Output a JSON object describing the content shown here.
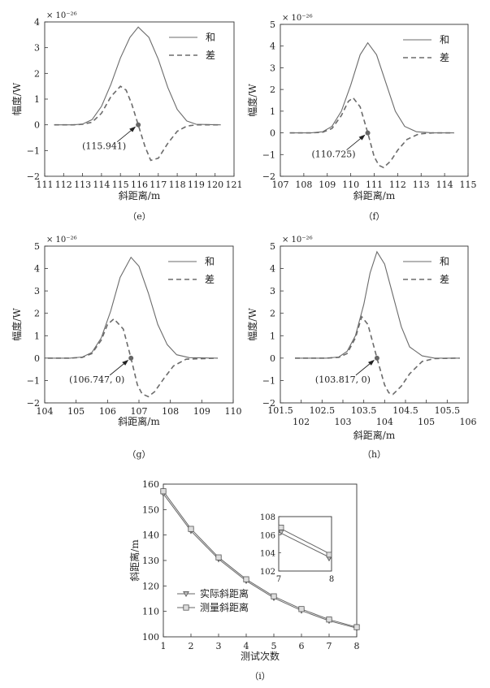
{
  "chart_data": [
    {
      "id": "e",
      "type": "line",
      "caption": "（e）",
      "xlabel": "斜距离/m",
      "ylabel": "幅度/W",
      "exponent_label": "× 10⁻²⁶",
      "xlim": [
        111,
        121
      ],
      "ylim": [
        -2,
        4
      ],
      "xticks": [
        "111",
        "112",
        "113",
        "114",
        "115",
        "116",
        "117",
        "118",
        "119",
        "120",
        "121"
      ],
      "yticks": [
        "−2",
        "−1",
        "0",
        "1",
        "2",
        "3",
        "4"
      ],
      "legend": [
        "和",
        "差"
      ],
      "legend_position": "top-right",
      "annotation": "(115.941)",
      "marker": {
        "x": 115.941,
        "y": 0
      },
      "series": [
        {
          "name": "和",
          "style": "solid",
          "x": [
            111.5,
            112.5,
            113.0,
            113.5,
            114.0,
            114.5,
            115.0,
            115.5,
            115.941,
            116.5,
            117.0,
            117.5,
            118.0,
            118.5,
            119.0,
            120.3
          ],
          "values": [
            0,
            0,
            0.03,
            0.2,
            0.72,
            1.58,
            2.6,
            3.4,
            3.8,
            3.4,
            2.55,
            1.45,
            0.6,
            0.15,
            0.02,
            0
          ]
        },
        {
          "name": "差",
          "style": "dashed",
          "x": [
            111.5,
            112.5,
            113.0,
            113.5,
            114.0,
            114.5,
            115.0,
            115.3,
            115.6,
            115.941,
            116.3,
            116.6,
            117.0,
            117.5,
            118.0,
            118.5,
            119.0,
            120.3
          ],
          "values": [
            0,
            0,
            0.02,
            0.1,
            0.45,
            1.1,
            1.5,
            1.35,
            0.8,
            0,
            -0.85,
            -1.38,
            -1.3,
            -0.72,
            -0.25,
            -0.05,
            0,
            0
          ]
        }
      ]
    },
    {
      "id": "f",
      "type": "line",
      "caption": "（f）",
      "xlabel": "斜距离/m",
      "ylabel": "幅度/W",
      "exponent_label": "× 10⁻²⁶",
      "xlim": [
        107,
        115
      ],
      "ylim": [
        -2,
        5
      ],
      "xticks": [
        "107",
        "108",
        "109",
        "110",
        "111",
        "112",
        "113",
        "114",
        "115"
      ],
      "yticks": [
        "−2",
        "−1",
        "0",
        "1",
        "2",
        "3",
        "4",
        "5"
      ],
      "legend": [
        "和",
        "差"
      ],
      "legend_position": "top-right",
      "annotation": "(110.725)",
      "marker": {
        "x": 110.725,
        "y": 0
      },
      "series": [
        {
          "name": "和",
          "style": "solid",
          "x": [
            107.4,
            108.3,
            108.8,
            109.2,
            109.6,
            110.0,
            110.4,
            110.725,
            111.1,
            111.5,
            111.9,
            112.3,
            112.8,
            113.5,
            114.4
          ],
          "values": [
            0,
            0,
            0.05,
            0.3,
            1.0,
            2.2,
            3.6,
            4.15,
            3.6,
            2.3,
            1.0,
            0.3,
            0.05,
            0,
            0
          ]
        },
        {
          "name": "差",
          "style": "dashed",
          "x": [
            107.4,
            108.3,
            108.8,
            109.2,
            109.6,
            109.9,
            110.1,
            110.4,
            110.725,
            111.0,
            111.2,
            111.4,
            111.7,
            112.0,
            112.4,
            112.9,
            113.5,
            114.4
          ],
          "values": [
            0,
            0,
            0.03,
            0.2,
            0.8,
            1.45,
            1.62,
            1.2,
            0,
            -1.1,
            -1.5,
            -1.6,
            -1.3,
            -0.8,
            -0.3,
            -0.05,
            0,
            0
          ]
        }
      ]
    },
    {
      "id": "g",
      "type": "line",
      "caption": "（g）",
      "xlabel": "斜距离/m",
      "ylabel": "幅度/W",
      "exponent_label": "× 10⁻²⁶",
      "xlim": [
        104,
        110
      ],
      "ylim": [
        -2,
        5
      ],
      "xticks": [
        "104",
        "105",
        "106",
        "107",
        "108",
        "109",
        "110"
      ],
      "yticks": [
        "−2",
        "−1",
        "0",
        "1",
        "2",
        "3",
        "4",
        "5"
      ],
      "legend": [
        "和",
        "差"
      ],
      "legend_position": "top-right",
      "annotation": "(106.747, 0)",
      "marker": {
        "x": 106.747,
        "y": 0
      },
      "series": [
        {
          "name": "和",
          "style": "solid",
          "x": [
            104.1,
            104.8,
            105.2,
            105.5,
            105.8,
            106.1,
            106.4,
            106.747,
            107.0,
            107.3,
            107.6,
            107.9,
            108.2,
            108.6,
            109.5
          ],
          "values": [
            0,
            0,
            0.05,
            0.25,
            0.9,
            2.1,
            3.6,
            4.5,
            4.1,
            2.9,
            1.5,
            0.6,
            0.15,
            0.02,
            0
          ]
        },
        {
          "name": "差",
          "style": "dashed",
          "x": [
            104.1,
            104.8,
            105.2,
            105.5,
            105.8,
            106.0,
            106.2,
            106.5,
            106.747,
            106.95,
            107.1,
            107.3,
            107.5,
            107.8,
            108.1,
            108.5,
            109.5
          ],
          "values": [
            0,
            0,
            0.03,
            0.2,
            0.8,
            1.5,
            1.75,
            1.3,
            0,
            -1.2,
            -1.6,
            -1.72,
            -1.5,
            -0.9,
            -0.35,
            -0.05,
            0
          ]
        }
      ]
    },
    {
      "id": "h",
      "type": "line",
      "caption": "（h）",
      "xlabel": "斜距离/m",
      "ylabel": "幅度/W",
      "exponent_label": "× 10⁻²⁶",
      "xlim": [
        101.5,
        106
      ],
      "ylim": [
        -2,
        5
      ],
      "xticks": [
        "101.5",
        "102",
        "102.5",
        "103",
        "103.5",
        "104",
        "104.5",
        "105",
        "105.5",
        "106"
      ],
      "yticks": [
        "−2",
        "−1",
        "0",
        "1",
        "2",
        "3",
        "4",
        "5"
      ],
      "legend": [
        "和",
        "差"
      ],
      "legend_position": "top-right",
      "annotation": "(103.817, 0)",
      "marker": {
        "x": 103.817,
        "y": 0
      },
      "series": [
        {
          "name": "和",
          "style": "solid",
          "x": [
            101.85,
            102.6,
            102.9,
            103.1,
            103.3,
            103.5,
            103.65,
            103.817,
            104.0,
            104.2,
            104.4,
            104.6,
            104.9,
            105.2,
            105.8
          ],
          "values": [
            0,
            0,
            0.05,
            0.3,
            1.0,
            2.4,
            3.8,
            4.75,
            4.2,
            2.8,
            1.4,
            0.5,
            0.1,
            0,
            0
          ]
        },
        {
          "name": "差",
          "style": "dashed",
          "x": [
            101.85,
            102.6,
            102.9,
            103.1,
            103.3,
            103.45,
            103.6,
            103.817,
            104.0,
            104.1,
            104.2,
            104.4,
            104.6,
            104.9,
            105.2,
            105.8
          ],
          "values": [
            0,
            0,
            0.03,
            0.2,
            0.9,
            1.85,
            1.5,
            0,
            -1.2,
            -1.55,
            -1.62,
            -1.25,
            -0.7,
            -0.15,
            -0.02,
            0
          ]
        }
      ]
    },
    {
      "id": "i",
      "type": "line",
      "caption": "（i）",
      "xlabel": "测试次数",
      "ylabel": "斜距离/m",
      "xlim": [
        1,
        8
      ],
      "ylim": [
        100,
        160
      ],
      "categories": [
        1,
        2,
        3,
        4,
        5,
        6,
        7,
        8
      ],
      "xticks": [
        "1",
        "2",
        "3",
        "4",
        "5",
        "6",
        "7",
        "8"
      ],
      "yticks": [
        "100",
        "110",
        "120",
        "130",
        "140",
        "150",
        "160"
      ],
      "legend_position": "bottom-left",
      "series": [
        {
          "name": "实际斜距离",
          "marker": "triangle-down",
          "values": [
            156.2,
            141.6,
            130.5,
            122.0,
            115.3,
            110.3,
            106.3,
            103.4
          ]
        },
        {
          "name": "测量斜距离",
          "marker": "square",
          "values": [
            157.2,
            142.4,
            131.2,
            122.6,
            115.9,
            110.9,
            106.8,
            103.8
          ]
        }
      ],
      "inset": {
        "xlim": [
          7,
          8
        ],
        "ylim": [
          102,
          108
        ],
        "xticks": [
          "7",
          "8"
        ],
        "yticks": [
          "102",
          "104",
          "106",
          "108"
        ]
      }
    }
  ]
}
